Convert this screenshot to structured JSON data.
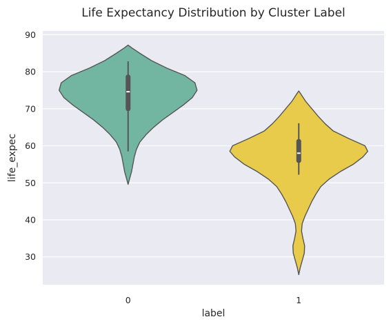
{
  "chart_data": {
    "type": "violin",
    "title": "Life Expectancy Distribution by Cluster Label",
    "xlabel": "label",
    "ylabel": "life_expec",
    "categories": [
      "0",
      "1"
    ],
    "ylim": [
      22.5,
      91
    ],
    "yticks": [
      30,
      40,
      50,
      60,
      70,
      80,
      90
    ],
    "grid": true,
    "background_color": "#eaeaf2",
    "violins": [
      {
        "category": "0",
        "color": "#72b6a1",
        "min": 49.6,
        "max": 87.2,
        "whisker_low": 58.5,
        "whisker_high": 82.8,
        "q1": 70.0,
        "median": 74.6,
        "q3": 78.6,
        "density": [
          [
            49.6,
            0.0
          ],
          [
            51.0,
            0.02
          ],
          [
            53.0,
            0.05
          ],
          [
            55.0,
            0.07
          ],
          [
            57.0,
            0.09
          ],
          [
            59.0,
            0.12
          ],
          [
            61.0,
            0.17
          ],
          [
            63.0,
            0.26
          ],
          [
            65.0,
            0.37
          ],
          [
            67.0,
            0.5
          ],
          [
            69.0,
            0.65
          ],
          [
            71.0,
            0.8
          ],
          [
            73.0,
            0.93
          ],
          [
            75.0,
            1.0
          ],
          [
            77.0,
            0.97
          ],
          [
            79.0,
            0.82
          ],
          [
            81.0,
            0.56
          ],
          [
            83.0,
            0.34
          ],
          [
            85.0,
            0.17
          ],
          [
            86.5,
            0.05
          ],
          [
            87.2,
            0.0
          ]
        ]
      },
      {
        "category": "1",
        "color": "#e8cb4a",
        "min": 25.2,
        "max": 74.8,
        "whisker_low": 52.2,
        "whisker_high": 66.1,
        "q1": 56.0,
        "median": 58.0,
        "q3": 61.2,
        "density": [
          [
            25.2,
            0.0
          ],
          [
            27.0,
            0.02
          ],
          [
            29.0,
            0.05
          ],
          [
            31.0,
            0.08
          ],
          [
            33.0,
            0.085
          ],
          [
            35.0,
            0.06
          ],
          [
            37.0,
            0.04
          ],
          [
            39.0,
            0.05
          ],
          [
            41.0,
            0.09
          ],
          [
            43.0,
            0.14
          ],
          [
            45.0,
            0.19
          ],
          [
            47.0,
            0.25
          ],
          [
            49.0,
            0.32
          ],
          [
            51.0,
            0.44
          ],
          [
            53.0,
            0.6
          ],
          [
            55.0,
            0.79
          ],
          [
            57.0,
            0.93
          ],
          [
            58.5,
            1.0
          ],
          [
            60.0,
            0.96
          ],
          [
            62.0,
            0.72
          ],
          [
            64.0,
            0.5
          ],
          [
            66.0,
            0.38
          ],
          [
            68.0,
            0.28
          ],
          [
            70.0,
            0.19
          ],
          [
            72.0,
            0.1
          ],
          [
            74.0,
            0.03
          ],
          [
            74.8,
            0.0
          ]
        ]
      }
    ]
  }
}
